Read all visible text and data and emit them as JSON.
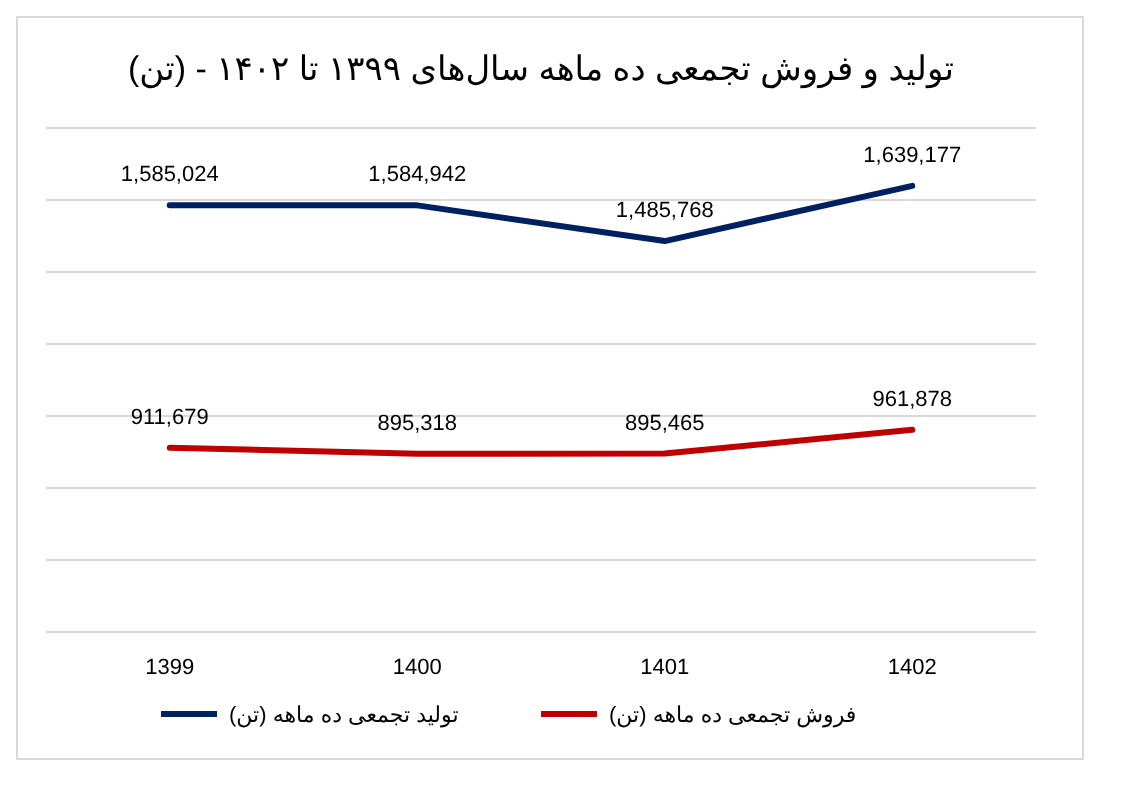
{
  "chart_data": {
    "type": "line",
    "title": "تولید و فروش تجمعی ده ماهه سال‌های ۱۳۹۹ تا ۱۴۰۲ - (تن)",
    "categories": [
      "1399",
      "1400",
      "1401",
      "1402"
    ],
    "series": [
      {
        "name": "تولید تجمعی ده ماهه (تن)",
        "color": "#002060",
        "values": [
          1585024,
          1584942,
          1485768,
          1639177
        ],
        "value_labels": [
          "1,585,024",
          "1,584,942",
          "1,485,768",
          "1,639,177"
        ]
      },
      {
        "name": "فروش تجمعی ده ماهه (تن)",
        "color": "#c00000",
        "values": [
          911679,
          895318,
          895465,
          961878
        ],
        "value_labels": [
          "911,679",
          "895,318",
          "895,465",
          "961,878"
        ]
      }
    ],
    "tick_labels": "x",
    "grid": "y",
    "legend": "bottom",
    "line_style": "solid"
  }
}
